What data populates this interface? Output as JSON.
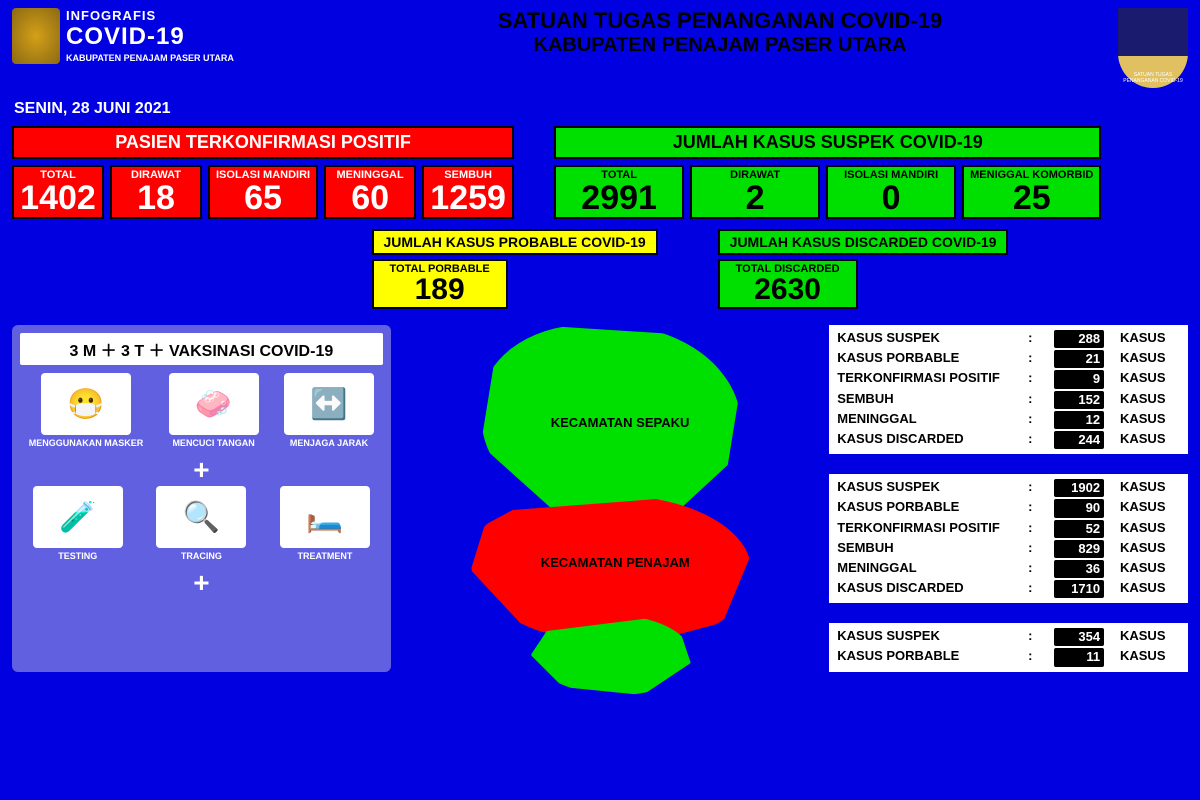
{
  "header": {
    "logo_title": "INFOGRAFIS",
    "logo_covid": "COVID-19",
    "logo_sub": "KABUPATEN PENAJAM PASER UTARA",
    "center_line1": "SATUAN TUGAS PENANGANAN COVID-19",
    "center_line2": "KABUPATEN PENAJAM PASER UTARA",
    "right_badge": "SATUAN TUGAS PENANGANAN COVID-19"
  },
  "date": "SENIN, 28 JUNI 2021",
  "positive": {
    "header": "PASIEN TERKONFIRMASI POSITIF",
    "boxes": [
      {
        "label": "TOTAL",
        "value": "1402"
      },
      {
        "label": "DIRAWAT",
        "value": "18"
      },
      {
        "label": "ISOLASI MANDIRI",
        "value": "65"
      },
      {
        "label": "MENINGGAL",
        "value": "60"
      },
      {
        "label": "SEMBUH",
        "value": "1259"
      }
    ]
  },
  "suspect": {
    "header": "JUMLAH KASUS SUSPEK COVID-19",
    "boxes": [
      {
        "label": "TOTAL",
        "value": "2991"
      },
      {
        "label": "DIRAWAT",
        "value": "2"
      },
      {
        "label": "ISOLASI MANDIRI",
        "value": "0"
      },
      {
        "label": "MENIGGAL KOMORBID",
        "value": "25"
      }
    ]
  },
  "probable": {
    "header": "JUMLAH KASUS PROBABLE COVID-19",
    "label": "TOTAL PORBABLE",
    "value": "189"
  },
  "discarded": {
    "header": "JUMLAH KASUS DISCARDED COVID-19",
    "label": "TOTAL DISCARDED",
    "value": "2630"
  },
  "protocol": {
    "header": "3 M ＋ 3 T ＋ VAKSINASI COVID-19",
    "row1": [
      {
        "label": "MENGGUNAKAN MASKER",
        "icon": "😷"
      },
      {
        "label": "MENCUCI TANGAN",
        "icon": "🧼"
      },
      {
        "label": "MENJAGA JARAK",
        "icon": "↔️"
      }
    ],
    "row2": [
      {
        "label": "TESTING",
        "icon": "🧪"
      },
      {
        "label": "TRACING",
        "icon": "🔍"
      },
      {
        "label": "TREATMENT",
        "icon": "🛏️"
      }
    ]
  },
  "map": {
    "region1": "KECAMATAN SEPAKU",
    "region2": "KECAMATAN PENAJAM"
  },
  "tables": [
    {
      "rows": [
        {
          "k": "KASUS SUSPEK",
          "v": "288",
          "u": "KASUS"
        },
        {
          "k": "KASUS PORBABLE",
          "v": "21",
          "u": "KASUS"
        },
        {
          "k": "TERKONFIRMASI POSITIF",
          "v": "9",
          "u": "KASUS"
        },
        {
          "k": "SEMBUH",
          "v": "152",
          "u": "KASUS"
        },
        {
          "k": "MENINGGAL",
          "v": "12",
          "u": "KASUS"
        },
        {
          "k": "KASUS DISCARDED",
          "v": "244",
          "u": "KASUS"
        }
      ]
    },
    {
      "rows": [
        {
          "k": "KASUS SUSPEK",
          "v": "1902",
          "u": "KASUS"
        },
        {
          "k": "KASUS PORBABLE",
          "v": "90",
          "u": "KASUS"
        },
        {
          "k": "TERKONFIRMASI POSITIF",
          "v": "52",
          "u": "KASUS"
        },
        {
          "k": "SEMBUH",
          "v": "829",
          "u": "KASUS"
        },
        {
          "k": "MENINGGAL",
          "v": "36",
          "u": "KASUS"
        },
        {
          "k": "KASUS DISCARDED",
          "v": "1710",
          "u": "KASUS"
        }
      ]
    },
    {
      "rows": [
        {
          "k": "KASUS SUSPEK",
          "v": "354",
          "u": "KASUS"
        },
        {
          "k": "KASUS PORBABLE",
          "v": "11",
          "u": "KASUS"
        }
      ]
    }
  ]
}
